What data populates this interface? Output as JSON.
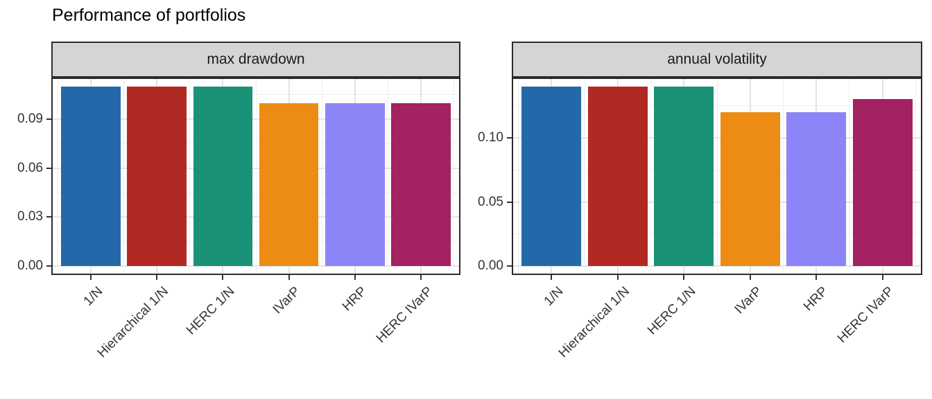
{
  "title": "Performance of portfolios",
  "bar_colors": [
    "#2369A9",
    "#B22823",
    "#1B9178",
    "#EC8C14",
    "#8C85F8",
    "#A22262"
  ],
  "style": {
    "strip_bg": "#D5D5D5",
    "panel_border": "#2B2B2B",
    "panel_bg": "#FFFFFF",
    "grid_major": "#E3E3E3",
    "grid_minor": "#EEEEEE",
    "tick_color": "#333333",
    "text_color": "#333333",
    "title_color": "#000000"
  },
  "chart_data": [
    {
      "type": "bar",
      "facet_label": "max drawdown",
      "categories": [
        "1/N",
        "Hierarchical 1/N",
        "HERC 1/N",
        "IVarP",
        "HRP",
        "HERC IVarP"
      ],
      "values": [
        0.11,
        0.11,
        0.11,
        0.1,
        0.1,
        0.1
      ],
      "yticks": [
        0,
        0.03,
        0.06,
        0.09
      ],
      "ytick_labels": [
        "0.00",
        "0.03",
        "0.06",
        "0.09"
      ],
      "minor_yticks": [
        0.015,
        0.045,
        0.075,
        0.105
      ],
      "ylim": [
        0,
        0.1155
      ],
      "xlabel": "",
      "ylabel": "",
      "grid": true,
      "legend": "none"
    },
    {
      "type": "bar",
      "facet_label": "annual volatility",
      "categories": [
        "1/N",
        "Hierarchical 1/N",
        "HERC 1/N",
        "IVarP",
        "HRP",
        "HERC IVarP"
      ],
      "values": [
        0.14,
        0.14,
        0.14,
        0.12,
        0.12,
        0.13
      ],
      "yticks": [
        0,
        0.05,
        0.1
      ],
      "ytick_labels": [
        "0.00",
        "0.05",
        "0.10"
      ],
      "minor_yticks": [
        0.025,
        0.075,
        0.125
      ],
      "ylim": [
        0,
        0.147
      ],
      "xlabel": "",
      "ylabel": "",
      "grid": true,
      "legend": "none"
    }
  ]
}
